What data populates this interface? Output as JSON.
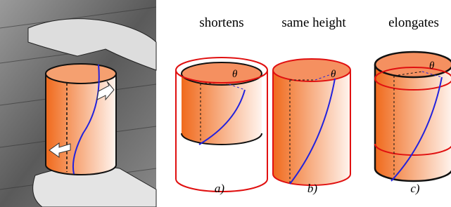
{
  "panels": [
    {
      "title": "shortens",
      "angle": "θ",
      "caption": "a)"
    },
    {
      "title": "same height",
      "angle": "θ",
      "caption": "b)"
    },
    {
      "title": "elongates",
      "angle": "θ",
      "caption": "c)"
    }
  ]
}
